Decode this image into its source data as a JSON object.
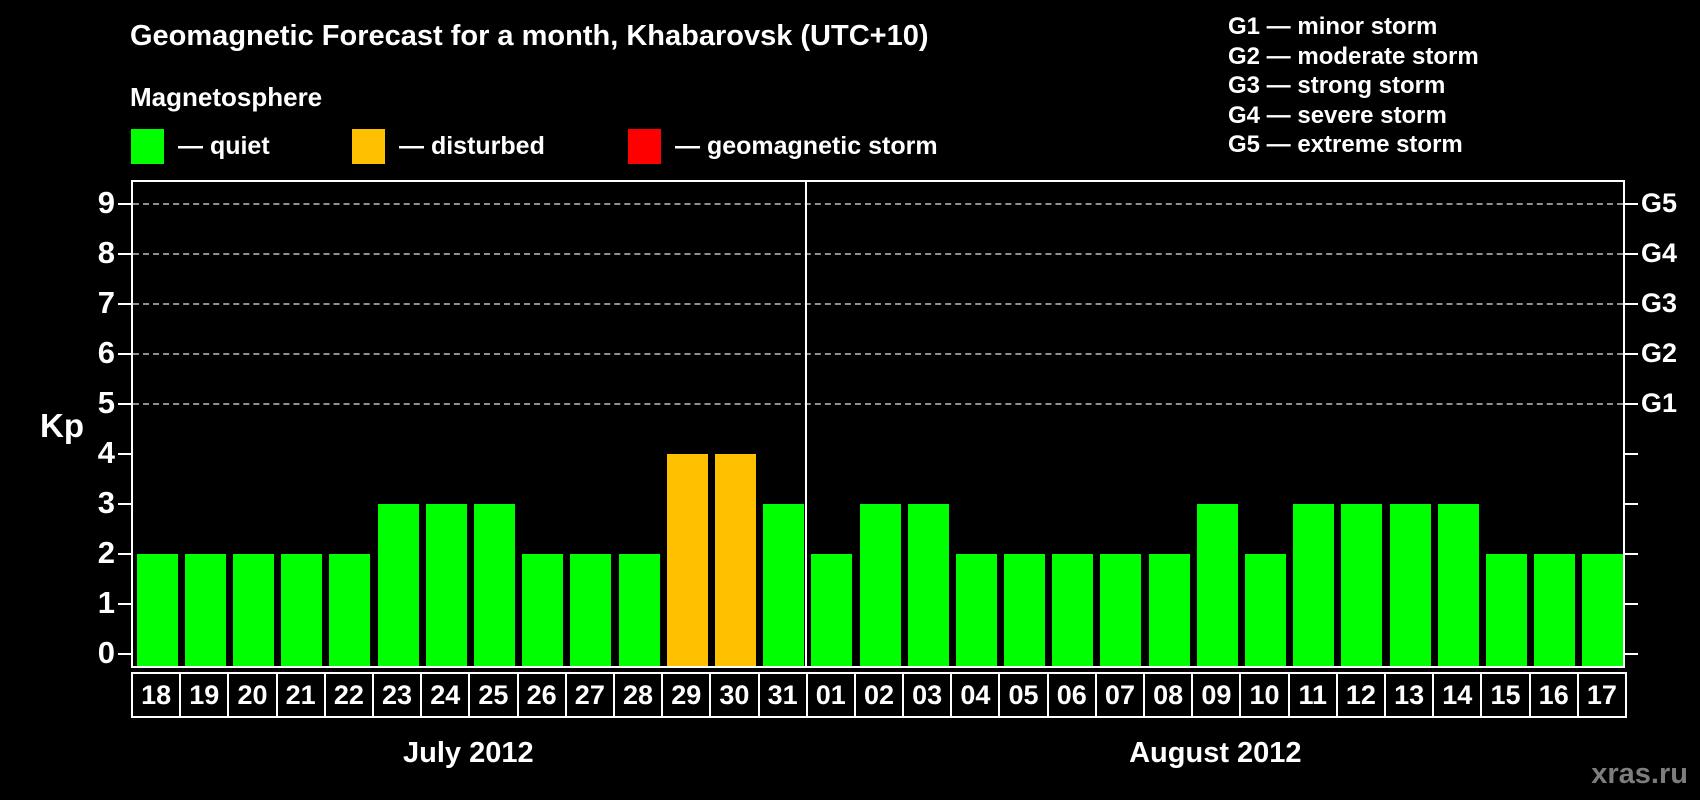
{
  "header": {
    "title": "Geomagnetic Forecast for a month, Khabarovsk (UTC+10)"
  },
  "legend": {
    "heading": "Magnetosphere",
    "items": [
      {
        "name": "quiet",
        "label": "— quiet",
        "color": "#00ff00"
      },
      {
        "name": "disturbed",
        "label": "— disturbed",
        "color": "#ffc000"
      },
      {
        "name": "geomagnetic-storm",
        "label": "— geomagnetic storm",
        "color": "#ff0000"
      }
    ]
  },
  "g_legend": {
    "items": [
      {
        "label": "G1 — minor storm"
      },
      {
        "label": "G2 — moderate storm"
      },
      {
        "label": "G3 — strong storm"
      },
      {
        "label": "G4 — severe storm"
      },
      {
        "label": "G5 — extreme storm"
      }
    ]
  },
  "footer": {
    "watermark": "xras.ru"
  },
  "chart_data": {
    "type": "bar",
    "title": "Geomagnetic Forecast for a month, Khabarovsk (UTC+10)",
    "ylabel": "Kp",
    "ylim": [
      0,
      9.6
    ],
    "yticks": [
      0,
      1,
      2,
      3,
      4,
      5,
      6,
      7,
      8,
      9
    ],
    "grid": true,
    "grid_levels": [
      5,
      6,
      7,
      8,
      9
    ],
    "right_axis": [
      {
        "kp": 5,
        "label": "G1"
      },
      {
        "kp": 6,
        "label": "G2"
      },
      {
        "kp": 7,
        "label": "G3"
      },
      {
        "kp": 8,
        "label": "G4"
      },
      {
        "kp": 9,
        "label": "G5"
      }
    ],
    "status_colors": {
      "quiet": "#00ff00",
      "disturbed": "#ffc000",
      "storm": "#ff0000"
    },
    "months": [
      {
        "label": "July 2012",
        "points": [
          {
            "day": "18",
            "kp": 2,
            "status": "quiet"
          },
          {
            "day": "19",
            "kp": 2,
            "status": "quiet"
          },
          {
            "day": "20",
            "kp": 2,
            "status": "quiet"
          },
          {
            "day": "21",
            "kp": 2,
            "status": "quiet"
          },
          {
            "day": "22",
            "kp": 2,
            "status": "quiet"
          },
          {
            "day": "23",
            "kp": 3,
            "status": "quiet"
          },
          {
            "day": "24",
            "kp": 3,
            "status": "quiet"
          },
          {
            "day": "25",
            "kp": 3,
            "status": "quiet"
          },
          {
            "day": "26",
            "kp": 2,
            "status": "quiet"
          },
          {
            "day": "27",
            "kp": 2,
            "status": "quiet"
          },
          {
            "day": "28",
            "kp": 2,
            "status": "quiet"
          },
          {
            "day": "29",
            "kp": 4,
            "status": "disturbed"
          },
          {
            "day": "30",
            "kp": 4,
            "status": "disturbed"
          },
          {
            "day": "31",
            "kp": 3,
            "status": "quiet"
          }
        ]
      },
      {
        "label": "August 2012",
        "points": [
          {
            "day": "01",
            "kp": 2,
            "status": "quiet"
          },
          {
            "day": "02",
            "kp": 3,
            "status": "quiet"
          },
          {
            "day": "03",
            "kp": 3,
            "status": "quiet"
          },
          {
            "day": "04",
            "kp": 2,
            "status": "quiet"
          },
          {
            "day": "05",
            "kp": 2,
            "status": "quiet"
          },
          {
            "day": "06",
            "kp": 2,
            "status": "quiet"
          },
          {
            "day": "07",
            "kp": 2,
            "status": "quiet"
          },
          {
            "day": "08",
            "kp": 2,
            "status": "quiet"
          },
          {
            "day": "09",
            "kp": 3,
            "status": "quiet"
          },
          {
            "day": "10",
            "kp": 2,
            "status": "quiet"
          },
          {
            "day": "11",
            "kp": 3,
            "status": "quiet"
          },
          {
            "day": "12",
            "kp": 3,
            "status": "quiet"
          },
          {
            "day": "13",
            "kp": 3,
            "status": "quiet"
          },
          {
            "day": "14",
            "kp": 3,
            "status": "quiet"
          },
          {
            "day": "15",
            "kp": 2,
            "status": "quiet"
          },
          {
            "day": "16",
            "kp": 2,
            "status": "quiet"
          },
          {
            "day": "17",
            "kp": 2,
            "status": "quiet"
          }
        ]
      }
    ]
  }
}
